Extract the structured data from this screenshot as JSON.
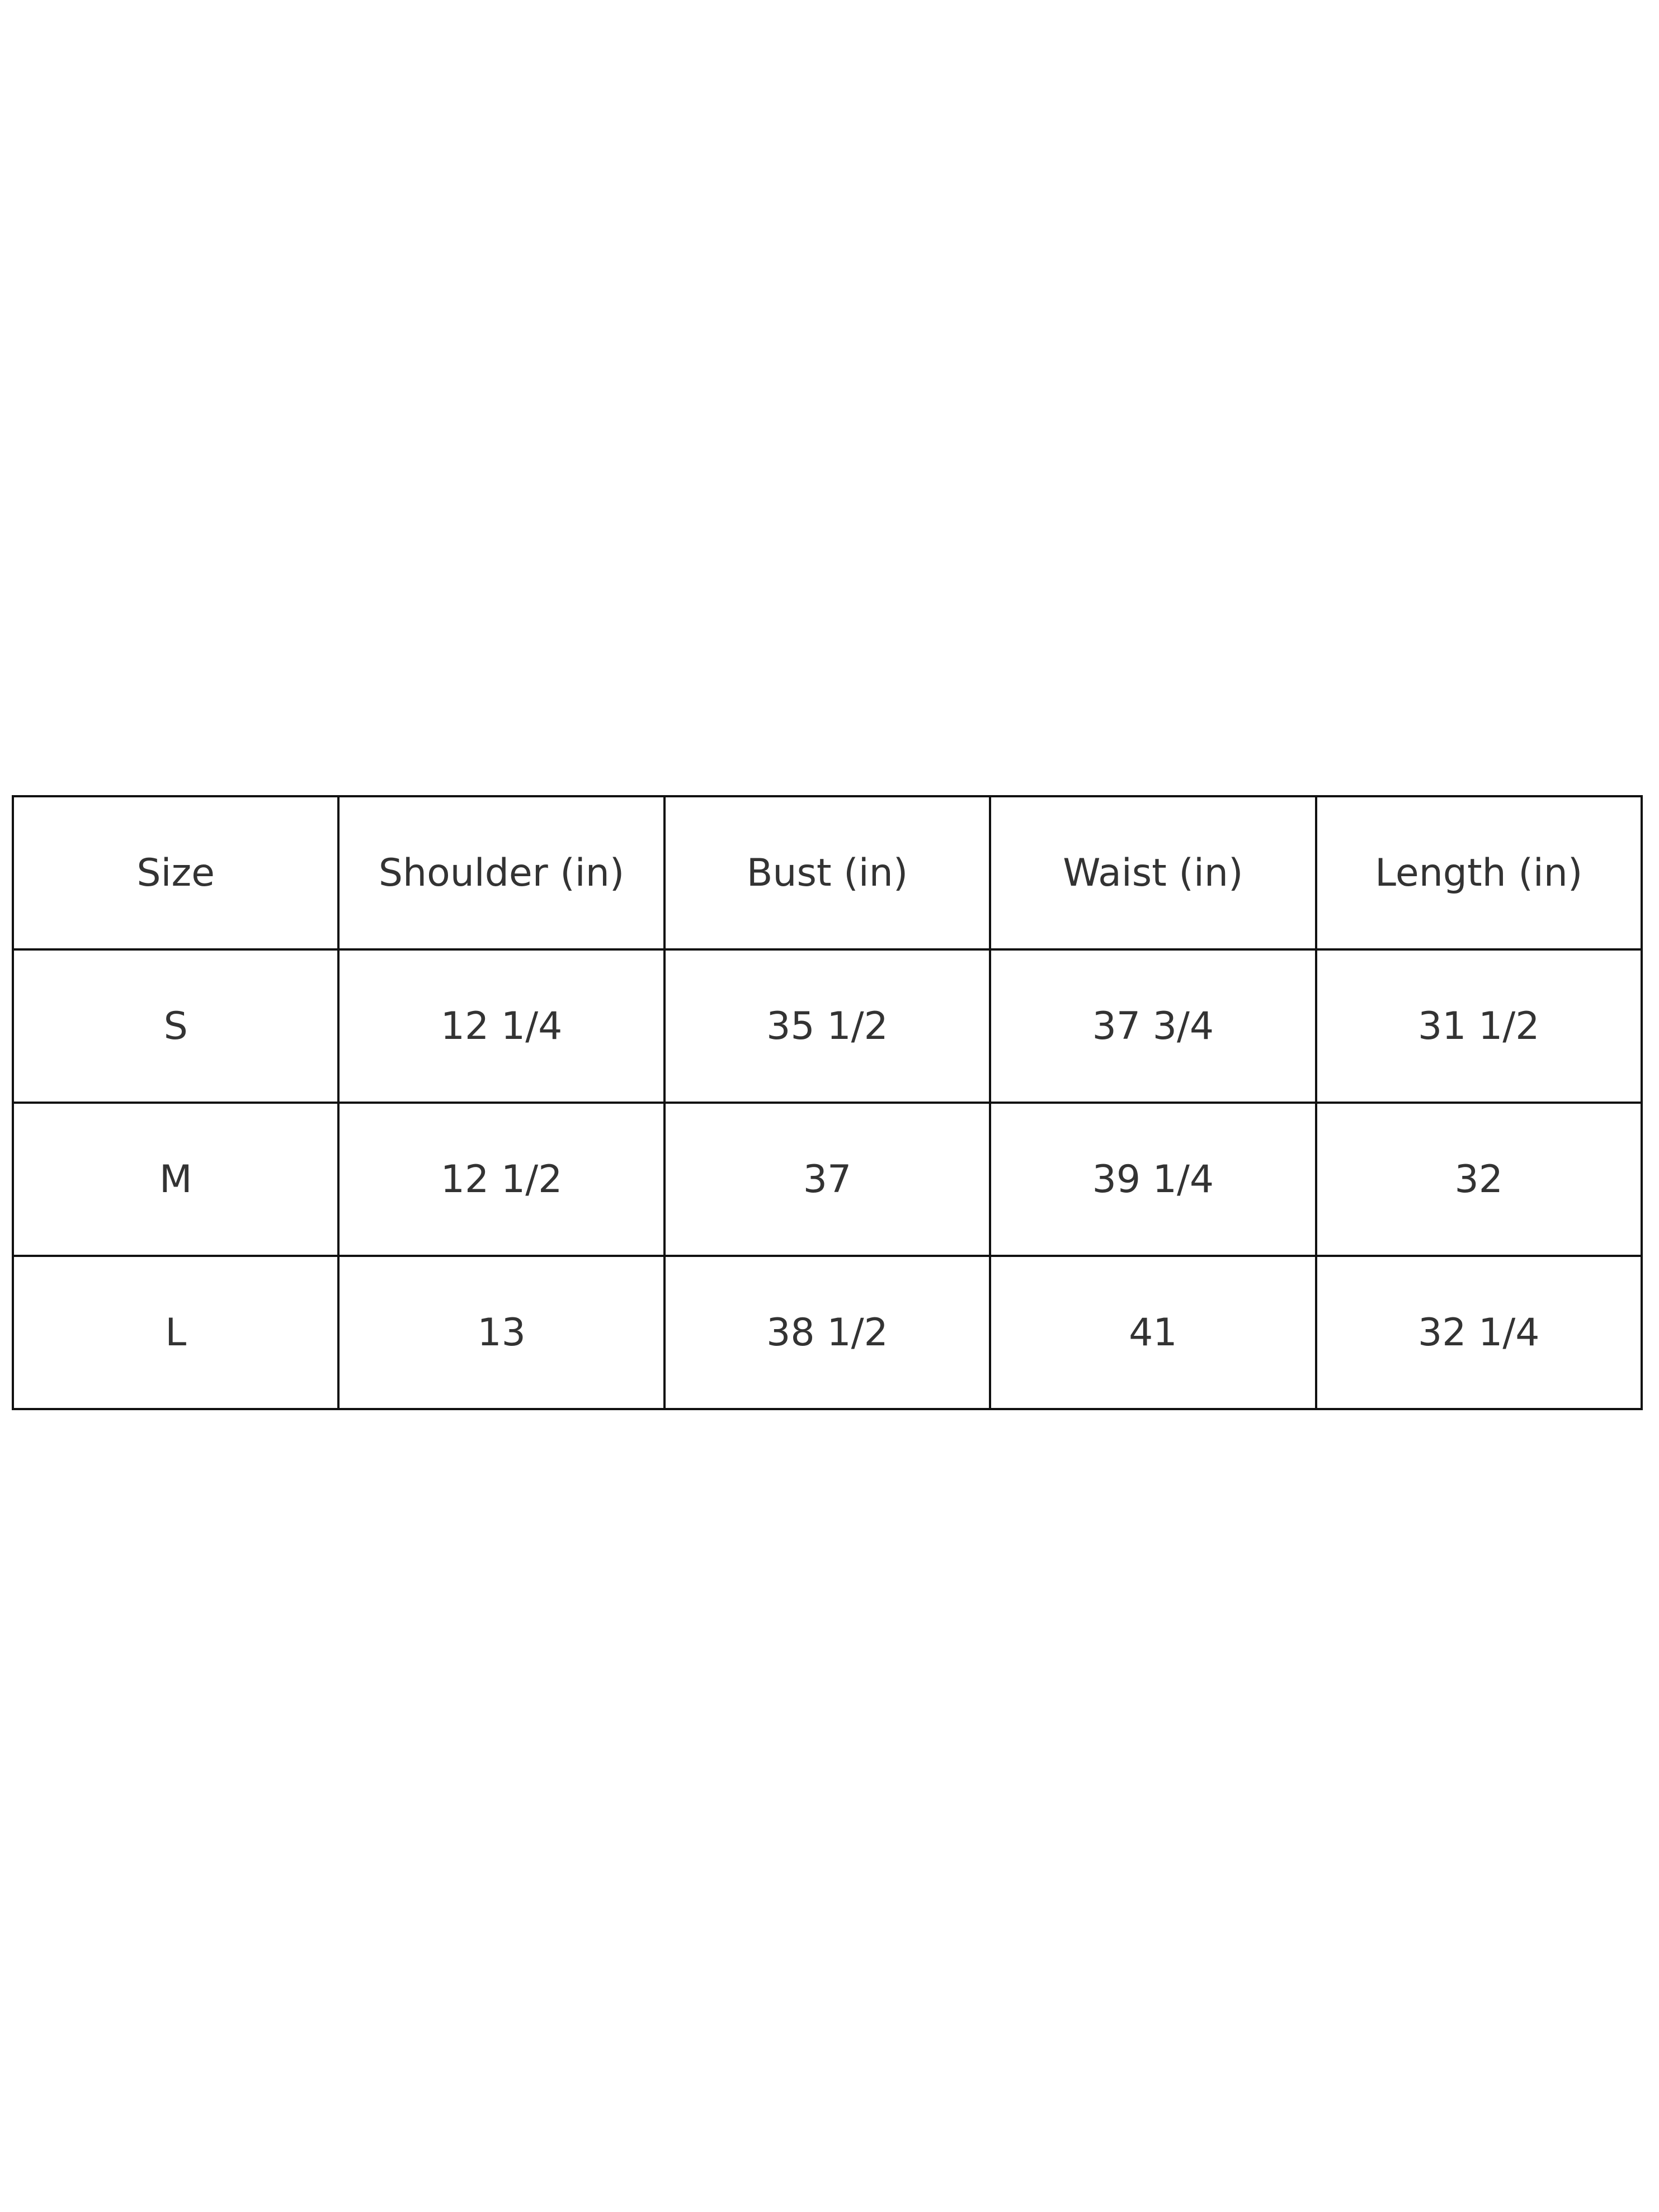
{
  "size_chart": {
    "headers": [
      "Size",
      "Shoulder (in)",
      "Bust (in)",
      "Waist (in)",
      "Length (in)"
    ],
    "rows": [
      [
        "S",
        "12 1/4",
        "35 1/2",
        "37 3/4",
        "31 1/2"
      ],
      [
        "M",
        "12 1/2",
        "37",
        "39 1/4",
        "32"
      ],
      [
        "L",
        "13",
        "38 1/2",
        "41",
        "32 1/4"
      ]
    ]
  }
}
